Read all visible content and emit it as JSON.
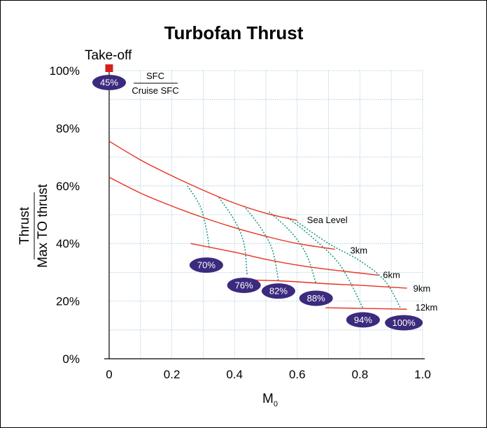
{
  "chart_data": {
    "type": "line",
    "title": "Turbofan Thrust",
    "xlabel": "M",
    "xlabel_sub": "0",
    "ylabel_numerator": "Thrust",
    "ylabel_denominator": "Max TO thrust",
    "xlim": [
      0,
      1.0
    ],
    "ylim": [
      0,
      100
    ],
    "x_ticks": [
      "0",
      "0.2",
      "0.4",
      "0.6",
      "0.8",
      "1.0"
    ],
    "y_ticks": [
      "0%",
      "20%",
      "40%",
      "60%",
      "80%",
      "100%"
    ],
    "grid": true,
    "series": [
      {
        "name": "Sea Level",
        "points": [
          [
            0,
            75.5
          ],
          [
            0.1,
            69
          ],
          [
            0.2,
            63.5
          ],
          [
            0.3,
            58.5
          ],
          [
            0.4,
            54
          ],
          [
            0.5,
            50.5
          ],
          [
            0.6,
            48
          ]
        ]
      },
      {
        "name": "3km",
        "points": [
          [
            0,
            63
          ],
          [
            0.1,
            57.5
          ],
          [
            0.2,
            53
          ],
          [
            0.3,
            49
          ],
          [
            0.4,
            45.5
          ],
          [
            0.5,
            42.5
          ],
          [
            0.6,
            40
          ],
          [
            0.72,
            38
          ]
        ]
      },
      {
        "name": "6km",
        "points": [
          [
            0.26,
            40
          ],
          [
            0.4,
            37
          ],
          [
            0.5,
            34.5
          ],
          [
            0.6,
            32.5
          ],
          [
            0.7,
            31
          ],
          [
            0.86,
            29
          ]
        ]
      },
      {
        "name": "9km",
        "points": [
          [
            0.4,
            27.5
          ],
          [
            0.55,
            27
          ],
          [
            0.7,
            26
          ],
          [
            0.8,
            25.5
          ],
          [
            0.95,
            24.5
          ]
        ]
      },
      {
        "name": "12km",
        "points": [
          [
            0.69,
            17.7
          ],
          [
            0.8,
            17.5
          ],
          [
            0.95,
            17.2
          ]
        ]
      }
    ],
    "sfc_contours": [
      {
        "label": "70%",
        "points": [
          [
            0.25,
            60
          ],
          [
            0.29,
            53
          ],
          [
            0.31,
            45
          ],
          [
            0.32,
            38
          ]
        ]
      },
      {
        "label": "76%",
        "points": [
          [
            0.35,
            56
          ],
          [
            0.4,
            48
          ],
          [
            0.43,
            40
          ],
          [
            0.44,
            29
          ]
        ]
      },
      {
        "label": "82%",
        "points": [
          [
            0.43,
            53
          ],
          [
            0.48,
            46
          ],
          [
            0.52,
            38
          ],
          [
            0.54,
            27
          ]
        ]
      },
      {
        "label": "88%",
        "points": [
          [
            0.51,
            51
          ],
          [
            0.58,
            44
          ],
          [
            0.63,
            36
          ],
          [
            0.66,
            26
          ]
        ]
      },
      {
        "label": "94%",
        "points": [
          [
            0.57,
            49
          ],
          [
            0.66,
            41
          ],
          [
            0.74,
            32
          ],
          [
            0.81,
            17.5
          ]
        ]
      },
      {
        "label": "100%",
        "points": [
          [
            0.6,
            47.5
          ],
          [
            0.7,
            40
          ],
          [
            0.8,
            34
          ],
          [
            0.88,
            27
          ],
          [
            0.93,
            17.5
          ]
        ]
      }
    ],
    "sfc_bubbles": [
      {
        "label": "70%",
        "x": 0.31,
        "y": 32.5
      },
      {
        "label": "76%",
        "x": 0.43,
        "y": 25.5
      },
      {
        "label": "82%",
        "x": 0.54,
        "y": 23.5
      },
      {
        "label": "88%",
        "x": 0.66,
        "y": 21
      },
      {
        "label": "94%",
        "x": 0.81,
        "y": 13.5
      },
      {
        "label": "100%",
        "x": 0.94,
        "y": 12.5
      }
    ],
    "takeoff": {
      "label": "Take-off",
      "x": 0,
      "y": 100,
      "sfc_label": "45%"
    },
    "sfc_legend": {
      "numerator": "SFC",
      "denominator": "Cruise SFC"
    },
    "colors": {
      "curve": "#e8321e",
      "contour": "#1f9a8a",
      "bubble": "#3b2a7d",
      "marker": "#d81e1e",
      "grid": "#9fc6dc"
    }
  }
}
